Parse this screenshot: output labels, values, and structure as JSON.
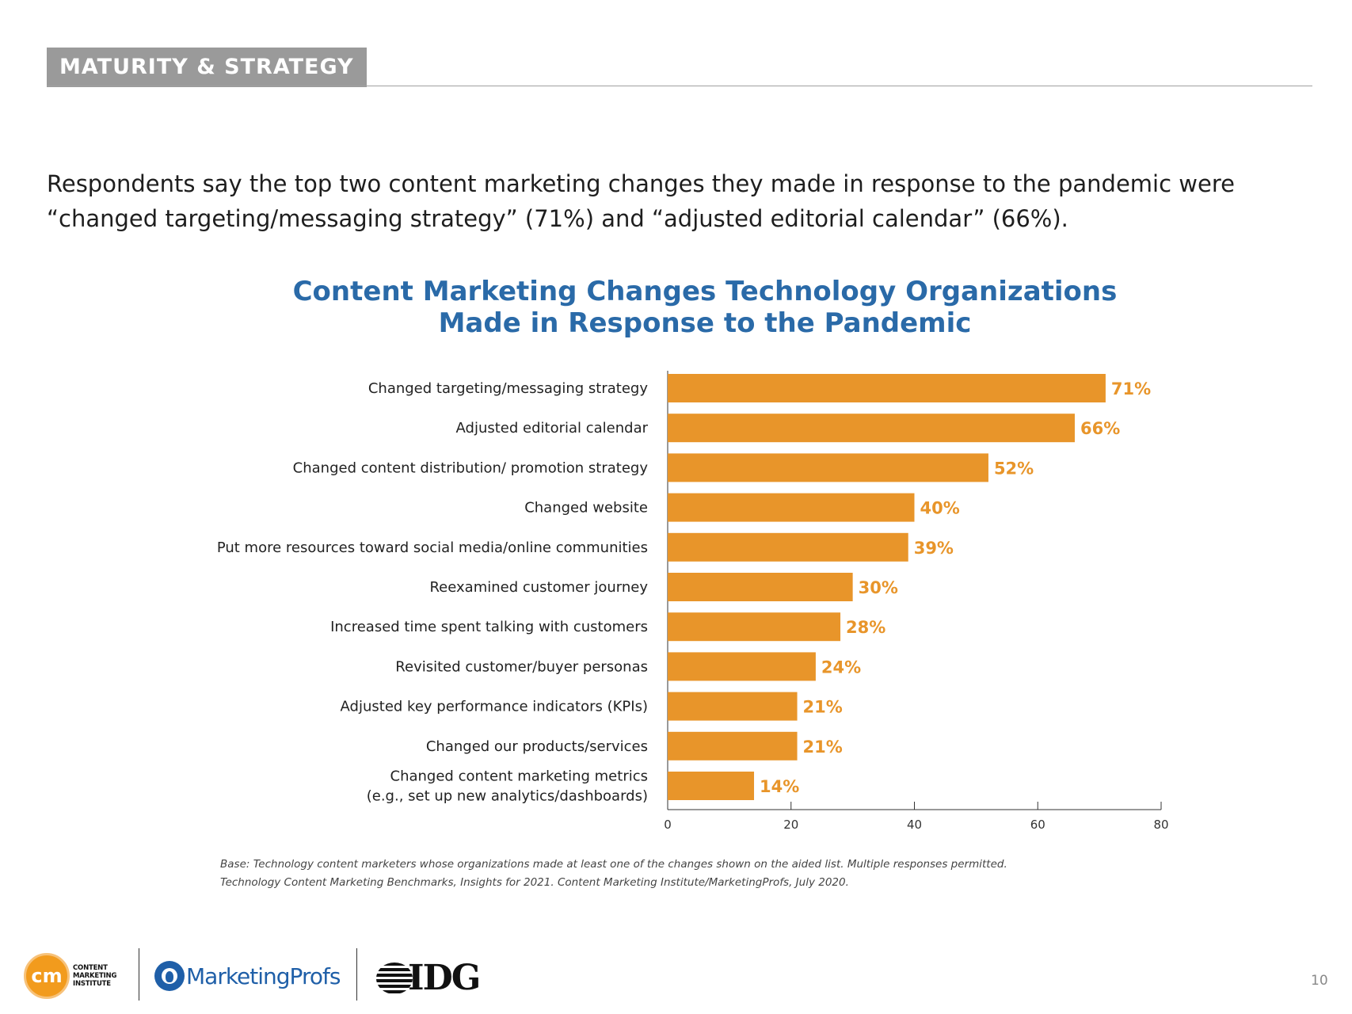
{
  "section_tag": "MATURITY & STRATEGY",
  "intro_text": "Respondents say the top two content marketing changes they made in response to the pandemic were “changed targeting/messaging strategy” (71%) and “adjusted editorial calendar” (66%).",
  "colors": {
    "bar": "#e8952a",
    "value_label": "#e8952a",
    "title": "#2a6aa8",
    "tag_bg": "#9a9a9a"
  },
  "chart_data": {
    "type": "bar",
    "orientation": "horizontal",
    "title_lines": [
      "Content Marketing Changes Technology Organizations",
      "Made in Response to the Pandemic"
    ],
    "categories": [
      [
        "Changed targeting/messaging strategy"
      ],
      [
        "Adjusted editorial calendar"
      ],
      [
        "Changed content distribution/ promotion strategy"
      ],
      [
        "Changed website"
      ],
      [
        "Put more resources toward social media/online communities"
      ],
      [
        "Reexamined customer journey"
      ],
      [
        "Increased time spent talking with customers"
      ],
      [
        "Revisited customer/buyer personas"
      ],
      [
        "Adjusted key performance indicators (KPIs)"
      ],
      [
        "Changed our products/services"
      ],
      [
        "Changed content marketing metrics",
        "(e.g., set up new analytics/dashboards)"
      ]
    ],
    "values": [
      71,
      66,
      52,
      40,
      39,
      30,
      28,
      24,
      21,
      21,
      14
    ],
    "value_labels": [
      "71%",
      "66%",
      "52%",
      "40%",
      "39%",
      "30%",
      "28%",
      "24%",
      "21%",
      "21%",
      "14%"
    ],
    "xlim": [
      0,
      80
    ],
    "xticks": [
      0,
      20,
      40,
      60,
      80
    ],
    "xtick_labels": [
      "0",
      "20",
      "40",
      "60",
      "80"
    ],
    "xlabel": "",
    "ylabel": ""
  },
  "footnote": {
    "line1": "Base: Technology content marketers whose organizations made at least one of the changes shown on the aided list. Multiple responses permitted.",
    "line2": "Technology Content Marketing Benchmarks, Insights for 2021. Content Marketing Institute/MarketingProfs, July 2020."
  },
  "logos": {
    "cmi_mark": "cm",
    "cmi_lines": [
      "CONTENT",
      "MARKETING",
      "INSTITUTE"
    ],
    "marketingprofs": "MarketingProfs",
    "idg": "IDG"
  },
  "page_number": "10"
}
